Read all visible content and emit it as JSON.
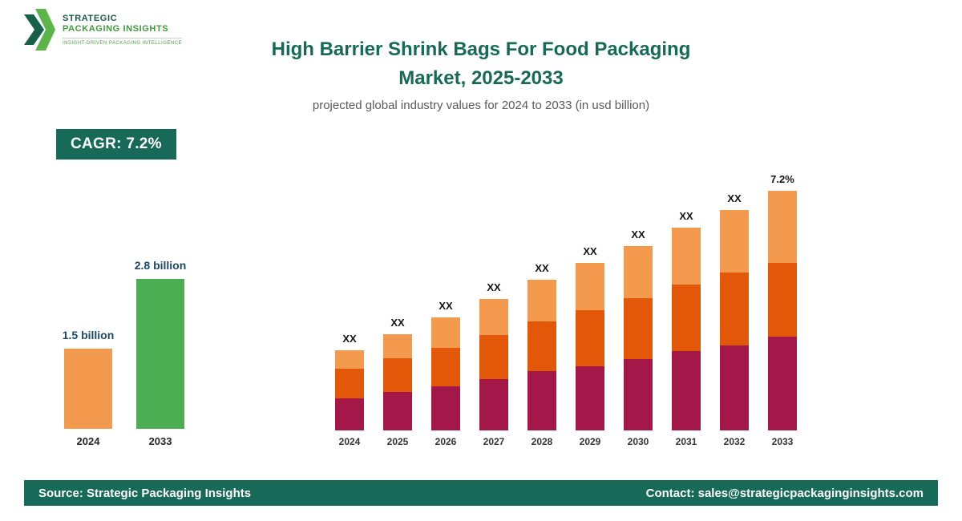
{
  "logo": {
    "name_line1": "STRATEGIC",
    "name_line2": "PACKAGING INSIGHTS",
    "tagline": "INSIGHT-DRIVEN PACKAGING INTELLIGENCE"
  },
  "header": {
    "title_line1": "High Barrier Shrink Bags For Food Packaging",
    "title_line2": "Market, 2025-2033",
    "subtitle": "projected global industry values for 2024 to 2033 (in usd billion)"
  },
  "cagr_badge": "CAGR: 7.2%",
  "footer": {
    "source": "Source: Strategic Packaging Insights",
    "contact": "Contact: sales@strategicpackaginginsights.com"
  },
  "colors": {
    "brand_teal": "#176a57",
    "logo_green": "#3e9b3e",
    "bar_light_orange": "#f49a4e",
    "bar_dark_orange": "#e35708",
    "bar_dark_red": "#a31848",
    "bar_green": "#4cae52"
  },
  "chart_data": [
    {
      "type": "bar",
      "title": "2024 vs 2033 market size",
      "categories": [
        "2024",
        "2033"
      ],
      "values": [
        1.5,
        2.8
      ],
      "value_labels": [
        "1.5 billion",
        "2.8 billion"
      ],
      "bar_colors": [
        "#f49a4e",
        "#4cae52"
      ],
      "unit": "usd billion",
      "grid": false,
      "legend": "none",
      "axes_hidden": true
    },
    {
      "type": "bar",
      "stacked": true,
      "title": "projected values 2024-2033 (values masked as XX)",
      "categories": [
        "2024",
        "2025",
        "2026",
        "2027",
        "2028",
        "2029",
        "2030",
        "2031",
        "2032",
        "2033"
      ],
      "series": [
        {
          "name": "segment-dark-red",
          "color": "#a31848",
          "values": [
            40,
            48,
            55,
            64,
            74,
            80,
            89,
            99,
            106,
            117
          ]
        },
        {
          "name": "segment-dark-orange",
          "color": "#e35708",
          "values": [
            37,
            42,
            48,
            55,
            62,
            70,
            76,
            83,
            91,
            92
          ]
        },
        {
          "name": "segment-light-orange",
          "color": "#f49a4e",
          "values": [
            23,
            30,
            38,
            45,
            52,
            59,
            65,
            71,
            78,
            90
          ]
        }
      ],
      "bar_labels": [
        "XX",
        "XX",
        "XX",
        "XX",
        "XX",
        "XX",
        "XX",
        "XX",
        "XX",
        "7.2%"
      ],
      "unit": "relative height (actual values shown as XX placeholders)",
      "grid": false,
      "legend": "none",
      "axes_hidden": true
    }
  ]
}
